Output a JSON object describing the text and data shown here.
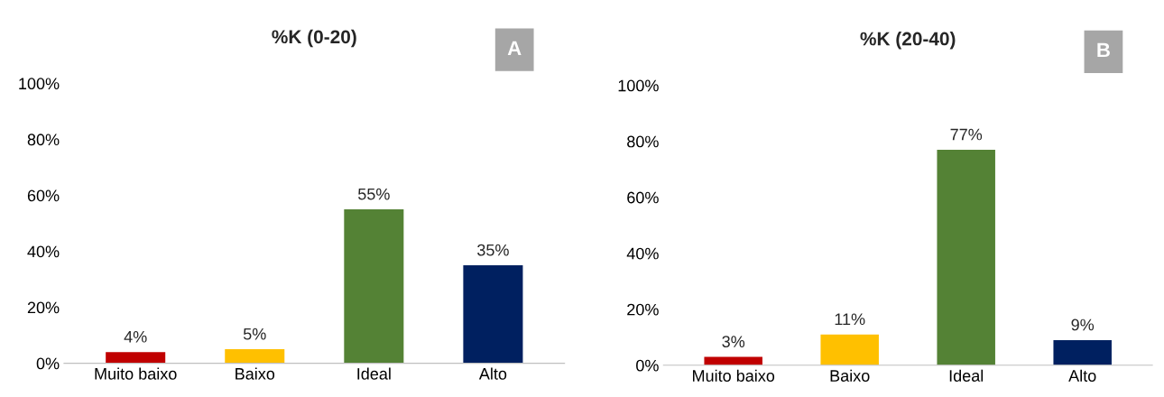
{
  "chart_data": [
    {
      "type": "bar",
      "title": "%K (0-20)",
      "annotations": [
        "A"
      ],
      "categories": [
        "Muito baixo",
        "Baixo",
        "Ideal",
        "Alto"
      ],
      "values": [
        4,
        5,
        55,
        35
      ],
      "value_labels": [
        "4%",
        "5%",
        "55%",
        "35%"
      ],
      "colors": [
        "#c00000",
        "#ffc000",
        "#548235",
        "#002060"
      ],
      "ylim": [
        0,
        100
      ],
      "yticks": [
        {
          "value": 0,
          "label": "0%"
        },
        {
          "value": 20,
          "label": "20%"
        },
        {
          "value": 40,
          "label": "40%"
        },
        {
          "value": 60,
          "label": "60%"
        },
        {
          "value": 80,
          "label": "80%"
        },
        {
          "value": 100,
          "label": "100%"
        }
      ],
      "grid": false,
      "legend": false
    },
    {
      "type": "bar",
      "title": "%K (20-40)",
      "annotations": [
        "B"
      ],
      "categories": [
        "Muito baixo",
        "Baixo",
        "Ideal",
        "Alto"
      ],
      "values": [
        3,
        11,
        77,
        9
      ],
      "value_labels": [
        "3%",
        "11%",
        "77%",
        "9%"
      ],
      "colors": [
        "#c00000",
        "#ffc000",
        "#548235",
        "#002060"
      ],
      "ylim": [
        0,
        100
      ],
      "yticks": [
        {
          "value": 0,
          "label": "0%"
        },
        {
          "value": 20,
          "label": "20%"
        },
        {
          "value": 40,
          "label": "40%"
        },
        {
          "value": 60,
          "label": "60%"
        },
        {
          "value": 80,
          "label": "80%"
        },
        {
          "value": 100,
          "label": "100%"
        }
      ],
      "grid": false,
      "legend": false
    }
  ]
}
